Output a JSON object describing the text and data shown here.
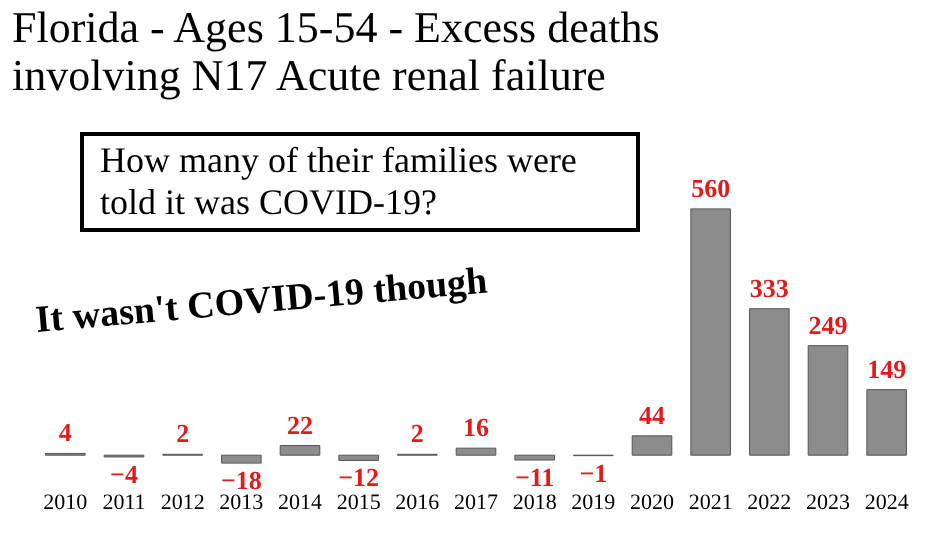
{
  "chart_data": {
    "type": "bar",
    "title": "Florida - Ages 15-54 - Excess deaths involving N17 Acute renal failure",
    "annotations": [
      "How many of their families were told it was COVID-19?",
      "It wasn't COVID-19 though"
    ],
    "categories": [
      "2010",
      "2011",
      "2012",
      "2013",
      "2014",
      "2015",
      "2016",
      "2017",
      "2018",
      "2019",
      "2020",
      "2021",
      "2022",
      "2023",
      "2024"
    ],
    "values": [
      4,
      -4,
      2,
      -18,
      22,
      -12,
      2,
      16,
      -11,
      -1,
      44,
      560,
      333,
      249,
      149
    ],
    "color": "#8c8c8c",
    "data_labels": true
  }
}
